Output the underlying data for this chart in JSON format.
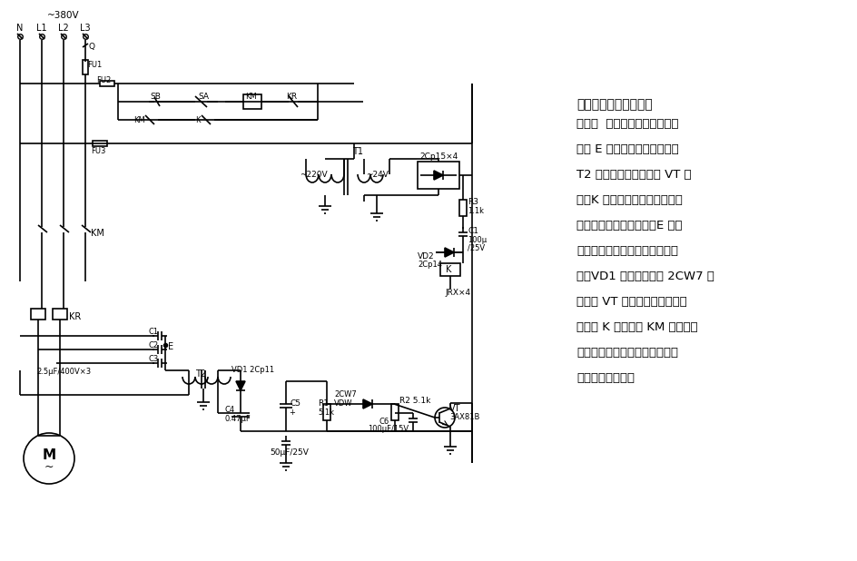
{
  "bg_color": "#ffffff",
  "line_color": "#000000",
  "description_title": "零序电压电动机断相保",
  "description_body": [
    "护电路  正常运行时，三相电源",
    "平衡 E 点的电位为零，变压器",
    "T2 无输出信号，三极管 VT 截",
    "止，K 不动作。当电源任一相断",
    "电时，由于三相不平衡，E 点的",
    "电位高于零电位，通过变压器耦",
    "合，VD1 整流，滤波及 2CW7 稳",
    "压，使 VT 导通，继电器动作，",
    "其触点 K 断开，使 KM 主触点断",
    "开，切断电动机电源，保护电动",
    "机不因断相烧坏。"
  ]
}
